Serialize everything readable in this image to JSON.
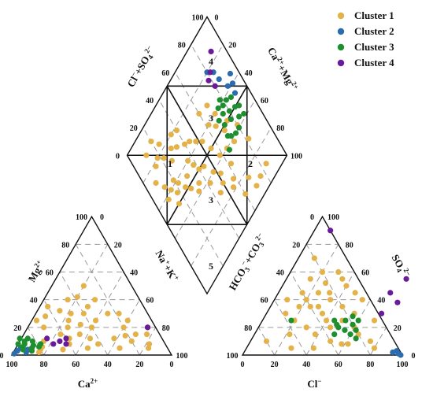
{
  "chart_data": {
    "type": "scatter",
    "subtype": "piper-trilinear",
    "legend": {
      "placement": "top-right",
      "items": [
        {
          "label": "Cluster 1",
          "color": "#E3B34A"
        },
        {
          "label": "Cluster 2",
          "color": "#2B6CB0"
        },
        {
          "label": "Cluster 3",
          "color": "#1E8F2E"
        },
        {
          "label": "Cluster 4",
          "color": "#6A1B9A"
        }
      ]
    },
    "ticks": [
      "0",
      "20",
      "40",
      "60",
      "80",
      "100"
    ],
    "cation_triangle": {
      "bottom_label": "Ca",
      "bottom_sup": "2+",
      "left_label": "Mg",
      "left_sup": "2+",
      "right_label": "Na",
      "right_sup": "+",
      "right_label_tail": "+K",
      "right_tail_sup": "+"
    },
    "anion_triangle": {
      "bottom_label": "Cl",
      "bottom_sup": "−",
      "right_label": "SO",
      "right_sub": "4",
      "right_sup": "2−",
      "left_label": "HCO",
      "left_sub": "3",
      "left_sup": "−",
      "left_label_mid": "+CO",
      "left_mid_sub": "3",
      "left_mid_sup": "2−"
    },
    "diamond": {
      "upper_left_label": "Cl",
      "upper_left_sup": "−",
      "upper_left_mid": "+SO",
      "upper_left_sub": "4",
      "upper_left_sup2": "2−",
      "upper_right_label": "Ca",
      "upper_right_sup": "2+",
      "upper_right_mid": "+Mg",
      "upper_right_sup2": "2+",
      "zone_labels": [
        "1",
        "2",
        "3",
        "3",
        "4",
        "5"
      ]
    },
    "series": [
      {
        "name": "Cluster 1",
        "color": "#E3B34A",
        "cations": [
          [
            30,
            50
          ],
          [
            45,
            40
          ],
          [
            40,
            30
          ],
          [
            15,
            15
          ],
          [
            10,
            8
          ],
          [
            60,
            8
          ],
          [
            60,
            35
          ],
          [
            35,
            25
          ],
          [
            25,
            30
          ],
          [
            55,
            20
          ],
          [
            50,
            15
          ],
          [
            45,
            12
          ],
          [
            20,
            20
          ],
          [
            65,
            28
          ],
          [
            30,
            12
          ],
          [
            40,
            20
          ],
          [
            48,
            30
          ],
          [
            70,
            20
          ],
          [
            20,
            10
          ],
          [
            35,
            35
          ],
          [
            52,
            25
          ],
          [
            12,
            5
          ],
          [
            58,
            12
          ],
          [
            42,
            8
          ],
          [
            72,
            25
          ],
          [
            5,
            20
          ],
          [
            28,
            40
          ],
          [
            62,
            15
          ],
          [
            38,
            42
          ],
          [
            18,
            30
          ],
          [
            22,
            14
          ],
          [
            66,
            4
          ],
          [
            75,
            10
          ],
          [
            78,
            6
          ],
          [
            80,
            4
          ],
          [
            82,
            2
          ],
          [
            8,
            15
          ],
          [
            30,
            5
          ],
          [
            50,
            5
          ],
          [
            54,
            32
          ],
          [
            15,
            25
          ],
          [
            46,
            22
          ]
        ],
        "anions": [
          [
            10,
            70
          ],
          [
            20,
            60
          ],
          [
            15,
            55
          ],
          [
            30,
            60
          ],
          [
            40,
            50
          ],
          [
            25,
            45
          ],
          [
            35,
            40
          ],
          [
            20,
            40
          ],
          [
            30,
            35
          ],
          [
            45,
            35
          ],
          [
            55,
            30
          ],
          [
            50,
            25
          ],
          [
            40,
            25
          ],
          [
            30,
            20
          ],
          [
            60,
            20
          ],
          [
            70,
            25
          ],
          [
            35,
            30
          ],
          [
            15,
            45
          ],
          [
            25,
            35
          ],
          [
            45,
            20
          ],
          [
            65,
            15
          ],
          [
            75,
            10
          ],
          [
            80,
            5
          ],
          [
            12,
            30
          ],
          [
            20,
            25
          ],
          [
            38,
            15
          ],
          [
            50,
            10
          ],
          [
            58,
            8
          ],
          [
            10,
            10
          ],
          [
            22,
            15
          ],
          [
            28,
            5
          ],
          [
            42,
            5
          ],
          [
            8,
            40
          ],
          [
            35,
            55
          ],
          [
            48,
            45
          ],
          [
            26,
            52
          ],
          [
            18,
            35
          ],
          [
            32,
            45
          ],
          [
            55,
            40
          ],
          [
            62,
            8
          ]
        ],
        "diamond": [
          [
            84,
            10
          ],
          [
            76,
            9
          ],
          [
            70,
            8
          ],
          [
            68,
            16
          ],
          [
            60,
            12
          ],
          [
            58,
            25
          ],
          [
            55,
            22
          ],
          [
            52,
            35
          ],
          [
            50,
            30
          ],
          [
            48,
            40
          ],
          [
            45,
            28
          ],
          [
            44,
            48
          ],
          [
            42,
            38
          ],
          [
            40,
            50
          ],
          [
            38,
            55
          ],
          [
            36,
            60
          ],
          [
            35,
            45
          ],
          [
            32,
            42
          ],
          [
            30,
            55
          ],
          [
            28,
            48
          ],
          [
            25,
            52
          ],
          [
            22,
            58
          ],
          [
            20,
            62
          ],
          [
            18,
            55
          ],
          [
            15,
            60
          ],
          [
            12,
            65
          ],
          [
            10,
            58
          ],
          [
            62,
            32
          ],
          [
            65,
            40
          ],
          [
            58,
            42
          ],
          [
            55,
            50
          ],
          [
            52,
            58
          ],
          [
            48,
            62
          ],
          [
            44,
            66
          ],
          [
            40,
            68
          ],
          [
            34,
            72
          ],
          [
            30,
            75
          ],
          [
            26,
            70
          ],
          [
            22,
            76
          ],
          [
            18,
            80
          ],
          [
            66,
            55
          ],
          [
            70,
            48
          ],
          [
            72,
            38
          ],
          [
            62,
            60
          ],
          [
            60,
            70
          ],
          [
            75,
            50
          ],
          [
            80,
            42
          ],
          [
            82,
            30
          ],
          [
            70,
            60
          ],
          [
            68,
            68
          ],
          [
            15,
            50
          ],
          [
            8,
            72
          ],
          [
            14,
            78
          ],
          [
            24,
            84
          ],
          [
            20,
            90
          ],
          [
            12,
            88
          ],
          [
            40,
            78
          ],
          [
            35,
            80
          ]
        ]
      },
      {
        "name": "Cluster 2",
        "color": "#2B6CB0",
        "cations": [
          [
            92,
            5
          ],
          [
            95,
            3
          ],
          [
            88,
            4
          ],
          [
            98,
            1
          ],
          [
            90,
            2
          ]
        ],
        "anions": [
          [
            95,
            3
          ],
          [
            97,
            1
          ],
          [
            99,
            0
          ],
          [
            93,
            2
          ]
        ],
        "diamond": [
          [
            90,
            55
          ],
          [
            88,
            62
          ],
          [
            85,
            70
          ],
          [
            92,
            60
          ],
          [
            94,
            65
          ],
          [
            80,
            80
          ],
          [
            84,
            76
          ]
        ]
      },
      {
        "name": "Cluster 3",
        "color": "#1E8F2E",
        "cations": [
          [
            85,
            5
          ],
          [
            88,
            8
          ],
          [
            90,
            6
          ],
          [
            82,
            10
          ],
          [
            86,
            3
          ],
          [
            92,
            8
          ],
          [
            80,
            6
          ],
          [
            84,
            12
          ],
          [
            87,
            10
          ],
          [
            91,
            4
          ],
          [
            78,
            8
          ],
          [
            83,
            7
          ],
          [
            89,
            12
          ]
        ],
        "anions": [
          [
            50,
            20
          ],
          [
            55,
            18
          ],
          [
            48,
            22
          ],
          [
            60,
            15
          ],
          [
            52,
            25
          ],
          [
            58,
            22
          ],
          [
            62,
            18
          ],
          [
            45,
            25
          ],
          [
            65,
            12
          ],
          [
            18,
            25
          ],
          [
            55,
            28
          ],
          [
            50,
            15
          ],
          [
            60,
            25
          ]
        ],
        "diamond": [
          [
            80,
            52
          ],
          [
            78,
            48
          ],
          [
            75,
            55
          ],
          [
            82,
            58
          ],
          [
            85,
            50
          ],
          [
            72,
            50
          ],
          [
            78,
            58
          ],
          [
            70,
            44
          ],
          [
            76,
            40
          ],
          [
            84,
            44
          ],
          [
            80,
            40
          ],
          [
            74,
            60
          ],
          [
            88,
            48
          ],
          [
            66,
            38
          ],
          [
            72,
            42
          ],
          [
            86,
            56
          ],
          [
            88,
            42
          ],
          [
            70,
            55
          ],
          [
            78,
            62
          ]
        ]
      },
      {
        "name": "Cluster 4",
        "color": "#6A1B9A",
        "cations": [
          [
            60,
            12
          ],
          [
            65,
            10
          ],
          [
            70,
            8
          ],
          [
            72,
            12
          ],
          [
            62,
            8
          ],
          [
            5,
            20
          ]
        ],
        "anions": [
          [
            75,
            55
          ],
          [
            70,
            45
          ],
          [
            78,
            38
          ],
          [
            72,
            30
          ],
          [
            10,
            90
          ]
        ],
        "diamond": [
          [
            90,
            85
          ],
          [
            82,
            78
          ],
          [
            80,
            70
          ],
          [
            78,
            76
          ]
        ]
      }
    ]
  }
}
